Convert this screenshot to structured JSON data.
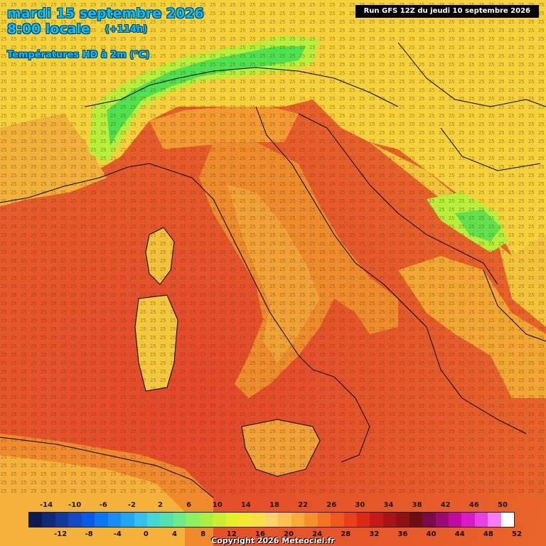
{
  "title": {
    "date": "mardi 15 septembre 2026",
    "time": "8:00 locale",
    "step": "(+114h)",
    "variable": "Températures HD à 2m (°C)"
  },
  "run_info": "Run GFS 12Z du jeudi 10 septembre 2026",
  "copyright": "Copyright 2026 Meteociel.fr",
  "legend": {
    "top_labels": [
      "-14",
      "-10",
      "-6",
      "-2",
      "2",
      "6",
      "10",
      "14",
      "18",
      "22",
      "26",
      "30",
      "34",
      "38",
      "42",
      "46",
      "50"
    ],
    "bottom_labels": [
      "-12",
      "-8",
      "-4",
      "0",
      "4",
      "8",
      "12",
      "16",
      "20",
      "24",
      "28",
      "32",
      "36",
      "40",
      "44",
      "48",
      "52"
    ],
    "colors": [
      "#0b1a55",
      "#102a7a",
      "#12389c",
      "#1448c4",
      "#0a5ae8",
      "#0a76f2",
      "#168ef5",
      "#22a6f2",
      "#33c0ee",
      "#45d6d8",
      "#55e0b0",
      "#6ceb8a",
      "#8cf060",
      "#aaf040",
      "#c8f030",
      "#e6f028",
      "#f6ea30",
      "#fae046",
      "#fdd26a",
      "#fbc050",
      "#f9aa38",
      "#f7902c",
      "#f57422",
      "#ef5a1c",
      "#e84018",
      "#dd2816",
      "#c81818",
      "#ab1414",
      "#8e1212",
      "#6e0e10",
      "#7a0a4a",
      "#9a0a72",
      "#be0aa0",
      "#d81ac8",
      "#ea3ee6",
      "#f87cf4",
      "#ffffff"
    ],
    "marker_labels": [
      "18",
      "20",
      "22",
      "24"
    ]
  },
  "map_colors": {
    "sea_hot": "#e8622a",
    "sea_warm": "#ec7a28",
    "land_hot": "#ef8f2a",
    "land_mild": "#f6c23a",
    "land_cool": "#f3e23a",
    "alps": "#4ee24e",
    "alps_edge": "#b8ef3a",
    "border": "#000000"
  }
}
